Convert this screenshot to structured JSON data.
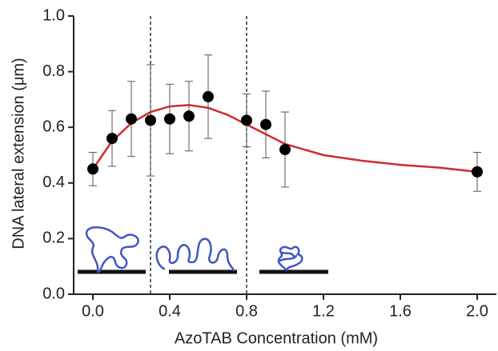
{
  "chart_data": {
    "type": "scatter",
    "xlabel": "AzoTAB Concentration (mM)",
    "ylabel": "DNA lateral extension (μm)",
    "xlim": [
      -0.1,
      2.1
    ],
    "ylim": [
      0,
      1.0
    ],
    "xticks": [
      {
        "value": 0,
        "label": "0.0"
      },
      {
        "value": 0.4,
        "label": "0.4"
      },
      {
        "value": 0.8,
        "label": "0.8"
      },
      {
        "value": 1.2,
        "label": "1.2"
      },
      {
        "value": 1.6,
        "label": "1.6"
      },
      {
        "value": 2.0,
        "label": "2.0"
      }
    ],
    "yticks": [
      {
        "value": 0,
        "label": "0.0"
      },
      0.2,
      0.4,
      0.6,
      0.8,
      {
        "value": 1.0,
        "label": "1.0"
      }
    ],
    "vlines": [
      0.3,
      0.8
    ],
    "points": {
      "color": "#000000",
      "x": [
        0.0,
        0.1,
        0.2,
        0.3,
        0.4,
        0.5,
        0.6,
        0.8,
        0.9,
        1.0,
        2.0
      ],
      "values": [
        0.45,
        0.56,
        0.63,
        0.625,
        0.63,
        0.64,
        0.71,
        0.625,
        0.61,
        0.52,
        0.44
      ],
      "errors": [
        0.06,
        0.1,
        0.135,
        0.2,
        0.125,
        0.125,
        0.15,
        0.095,
        0.12,
        0.135,
        0.07
      ]
    },
    "fit": {
      "color": "#d42a2a",
      "x": [
        0.0,
        0.1,
        0.2,
        0.3,
        0.4,
        0.5,
        0.6,
        0.7,
        0.8,
        0.9,
        1.0,
        1.2,
        1.4,
        1.6,
        1.8,
        2.0
      ],
      "values": [
        0.45,
        0.55,
        0.615,
        0.655,
        0.675,
        0.68,
        0.67,
        0.645,
        0.61,
        0.575,
        0.54,
        0.5,
        0.48,
        0.465,
        0.455,
        0.44
      ]
    }
  }
}
